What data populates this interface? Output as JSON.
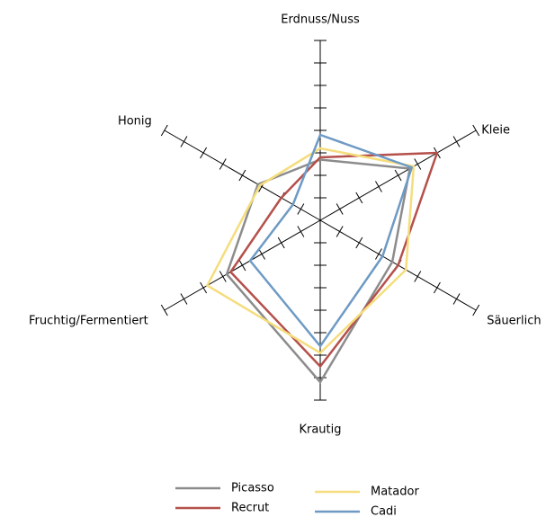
{
  "chart_data": {
    "type": "radar",
    "categories": [
      "Erdnuss/Nuss",
      "Kleie",
      "Säuerlich",
      "Krautig",
      "Fruchtig/Fermentiert",
      "Honig"
    ],
    "rlim": [
      0,
      8
    ],
    "rticks": [
      1,
      2,
      3,
      4,
      5,
      6,
      7,
      8
    ],
    "series": [
      {
        "name": "Picasso",
        "color": "#8c8c8c",
        "values": [
          2.7,
          4.6,
          3.7,
          7.2,
          4.8,
          3.2
        ]
      },
      {
        "name": "Recrut",
        "color": "#b5504b",
        "values": [
          2.8,
          6.0,
          4.0,
          6.5,
          4.6,
          2.0
        ]
      },
      {
        "name": "Matador",
        "color": "#f5dd7d",
        "values": [
          3.2,
          4.8,
          4.4,
          5.9,
          5.8,
          3.1
        ]
      },
      {
        "name": "Cadi",
        "color": "#6e9ac4",
        "values": [
          3.8,
          4.7,
          3.2,
          5.6,
          3.6,
          1.4
        ]
      }
    ]
  }
}
